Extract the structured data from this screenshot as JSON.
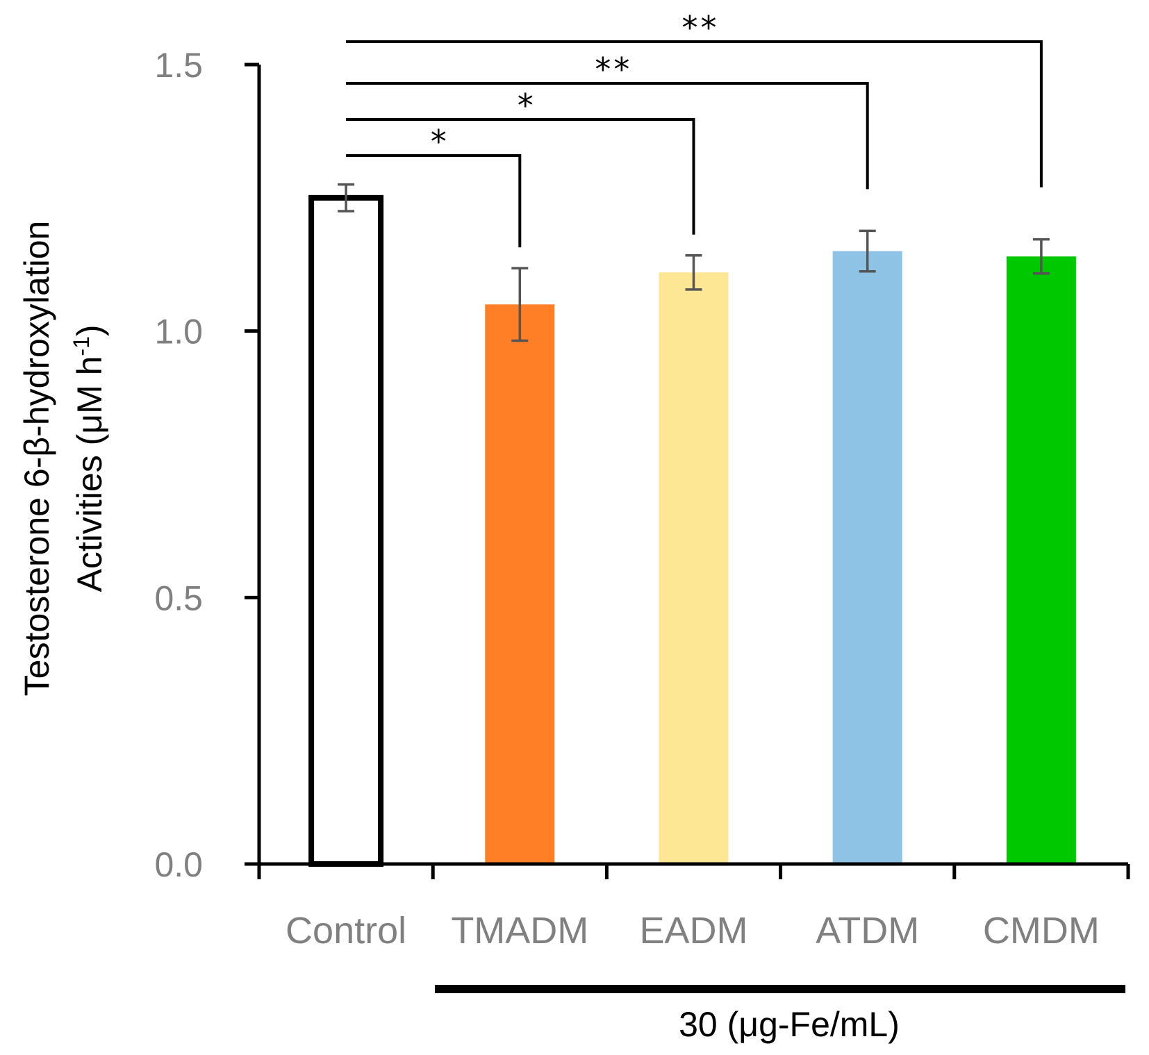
{
  "chart_data": {
    "type": "bar",
    "categories": [
      "Control",
      "TMADM",
      "EADM",
      "ATDM",
      "CMDM"
    ],
    "values": [
      1.25,
      1.05,
      1.11,
      1.15,
      1.14
    ],
    "errors": [
      0.025,
      0.068,
      0.032,
      0.038,
      0.032
    ],
    "colors": [
      "#ffffff",
      "#ff7f27",
      "#fde694",
      "#8ec3e6",
      "#00c800"
    ],
    "outline": [
      true,
      false,
      false,
      false,
      false
    ],
    "ylabel_line1": "Testosterone 6-β-hydroxylation",
    "ylabel_line2": "Activities (μM h",
    "ylabel_sup": "-1",
    "ylabel_close": ")",
    "ylim": [
      0,
      1.5
    ],
    "yticks": [
      "0.0",
      "0.5",
      "1.0",
      "1.5"
    ],
    "group_label": "30 (μg-Fe/mL)",
    "significance": [
      {
        "target": "TMADM",
        "label": "*"
      },
      {
        "target": "EADM",
        "label": "*"
      },
      {
        "target": "ATDM",
        "label": "**"
      },
      {
        "target": "CMDM",
        "label": "**"
      }
    ],
    "grid": false
  }
}
